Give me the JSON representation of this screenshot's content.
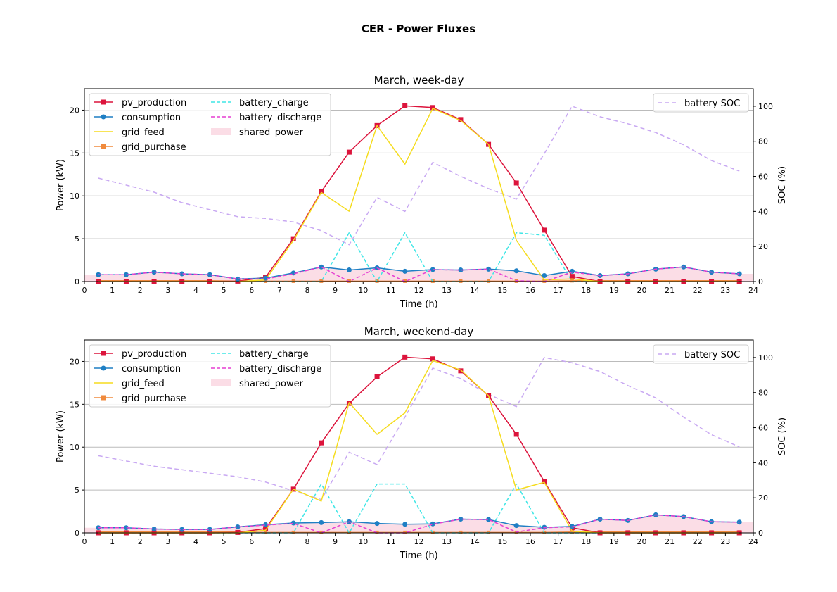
{
  "figure_title": "CER - Power Fluxes",
  "colors": {
    "pv_production": "#dc143c",
    "consumption": "#1f7fc4",
    "grid_feed": "#f5dc1e",
    "grid_purchase": "#f08a3c",
    "battery_charge": "#3fe6e6",
    "battery_discharge": "#e63fd2",
    "shared_power": "#fbdde6",
    "battery_soc": "#c8a8f2",
    "grid": "#bbbbbb"
  },
  "chart_data": [
    {
      "type": "line",
      "title": "March, week-day",
      "xlabel": "Time (h)",
      "ylabel": "Power (kW)",
      "y2label": "SOC (%)",
      "xlim": [
        0,
        24
      ],
      "ylim": [
        0,
        22.5
      ],
      "y2lim": [
        0,
        110
      ],
      "xticks": [
        "0",
        "1",
        "2",
        "3",
        "4",
        "5",
        "6",
        "7",
        "8",
        "9",
        "10",
        "11",
        "12",
        "13",
        "14",
        "15",
        "16",
        "17",
        "18",
        "19",
        "20",
        "21",
        "22",
        "23",
        "24"
      ],
      "yticks": [
        "0",
        "5",
        "10",
        "15",
        "20"
      ],
      "y2ticks": [
        "0",
        "20",
        "40",
        "60",
        "80",
        "100"
      ],
      "grid": "horizontal",
      "legend_left": "top-left",
      "legend_right": "top-right",
      "x": [
        0.5,
        1.5,
        2.5,
        3.5,
        4.5,
        5.5,
        6.5,
        7.5,
        8.5,
        9.5,
        10.5,
        11.5,
        12.5,
        13.5,
        14.5,
        15.5,
        16.5,
        17.5,
        18.5,
        19.5,
        20.5,
        21.5,
        22.5,
        23.5
      ],
      "series": [
        {
          "name": "pv_production",
          "values": [
            0,
            0,
            0,
            0,
            0,
            0.05,
            0.5,
            5.0,
            10.5,
            15.1,
            18.2,
            20.5,
            20.3,
            18.9,
            16.0,
            11.5,
            6.0,
            0.6,
            0,
            0,
            0,
            0,
            0,
            0
          ]
        },
        {
          "name": "consumption",
          "values": [
            0.8,
            0.8,
            1.1,
            0.9,
            0.8,
            0.3,
            0.4,
            1.0,
            1.7,
            1.35,
            1.6,
            1.2,
            1.4,
            1.35,
            1.45,
            1.25,
            0.7,
            1.2,
            0.7,
            0.9,
            1.45,
            1.7,
            1.1,
            0.9
          ]
        },
        {
          "name": "grid_feed",
          "values": [
            0,
            0,
            0,
            0,
            0,
            0,
            0.2,
            4.8,
            10.4,
            8.2,
            18.2,
            13.7,
            20.2,
            18.8,
            16.0,
            4.8,
            0.2,
            0.3,
            0,
            0,
            0,
            0,
            0,
            0
          ]
        },
        {
          "name": "grid_purchase",
          "values": [
            0.1,
            0.1,
            0.1,
            0.1,
            0.1,
            0.05,
            0.05,
            0.05,
            0.05,
            0.05,
            0.05,
            0.05,
            0.05,
            0.05,
            0.05,
            0.05,
            0.05,
            0.1,
            0.1,
            0.1,
            0.1,
            0.1,
            0.1,
            0.1
          ]
        },
        {
          "name": "battery_charge",
          "values": [
            0,
            0,
            0,
            0,
            0,
            0,
            0,
            0,
            0,
            5.7,
            0,
            5.7,
            0,
            0,
            0,
            5.7,
            5.4,
            0,
            0,
            0,
            0,
            0,
            0,
            0
          ]
        },
        {
          "name": "battery_discharge",
          "values": [
            0.8,
            0.8,
            1.1,
            0.9,
            0.8,
            0.3,
            0.3,
            0.9,
            1.7,
            0,
            1.6,
            0,
            1.4,
            1.35,
            1.45,
            0.1,
            0,
            1.1,
            0.7,
            0.9,
            1.45,
            1.7,
            1.1,
            0.9
          ]
        },
        {
          "name": "shared_power",
          "values": [
            0.8,
            0.8,
            1.1,
            0.9,
            0.8,
            0.3,
            0.4,
            1.0,
            1.7,
            1.35,
            1.6,
            1.2,
            1.4,
            1.35,
            1.45,
            1.25,
            0.7,
            1.2,
            0.7,
            0.9,
            1.45,
            1.7,
            1.1,
            0.9
          ]
        },
        {
          "name": "battery SOC",
          "axis": "right",
          "values": [
            59,
            55,
            51,
            45,
            41,
            37,
            36,
            34,
            29,
            21,
            48,
            40,
            68,
            60,
            53,
            47,
            73,
            100,
            94,
            90,
            85,
            78,
            69,
            63
          ]
        }
      ]
    },
    {
      "type": "line",
      "title": "March, weekend-day",
      "xlabel": "Time (h)",
      "ylabel": "Power (kW)",
      "y2label": "SOC (%)",
      "xlim": [
        0,
        24
      ],
      "ylim": [
        0,
        22.5
      ],
      "y2lim": [
        0,
        110
      ],
      "xticks": [
        "0",
        "1",
        "2",
        "3",
        "4",
        "5",
        "6",
        "7",
        "8",
        "9",
        "10",
        "11",
        "12",
        "13",
        "14",
        "15",
        "16",
        "17",
        "18",
        "19",
        "20",
        "21",
        "22",
        "23",
        "24"
      ],
      "yticks": [
        "0",
        "5",
        "10",
        "15",
        "20"
      ],
      "y2ticks": [
        "0",
        "20",
        "40",
        "60",
        "80",
        "100"
      ],
      "grid": "horizontal",
      "legend_left": "top-left",
      "legend_right": "top-right",
      "x": [
        0.5,
        1.5,
        2.5,
        3.5,
        4.5,
        5.5,
        6.5,
        7.5,
        8.5,
        9.5,
        10.5,
        11.5,
        12.5,
        13.5,
        14.5,
        15.5,
        16.5,
        17.5,
        18.5,
        19.5,
        20.5,
        21.5,
        22.5,
        23.5
      ],
      "series": [
        {
          "name": "pv_production",
          "values": [
            0,
            0,
            0,
            0,
            0,
            0.05,
            0.5,
            5.1,
            10.5,
            15.1,
            18.2,
            20.5,
            20.3,
            18.9,
            16.0,
            11.5,
            6.0,
            0.6,
            0,
            0,
            0,
            0,
            0,
            0
          ]
        },
        {
          "name": "consumption",
          "values": [
            0.6,
            0.6,
            0.45,
            0.4,
            0.4,
            0.7,
            0.95,
            1.15,
            1.2,
            1.3,
            1.1,
            1.0,
            1.05,
            1.6,
            1.55,
            0.85,
            0.65,
            0.75,
            1.6,
            1.45,
            2.1,
            1.9,
            1.3,
            1.25
          ]
        },
        {
          "name": "grid_feed",
          "values": [
            0,
            0,
            0,
            0,
            0,
            0,
            0.3,
            5.1,
            3.7,
            15.2,
            11.5,
            14.0,
            20.1,
            19.0,
            16.0,
            5.0,
            5.9,
            0.2,
            0,
            0,
            0,
            0,
            0,
            0
          ]
        },
        {
          "name": "grid_purchase",
          "values": [
            0.1,
            0.1,
            0.1,
            0.1,
            0.1,
            0.1,
            0.05,
            0.05,
            0.05,
            0.05,
            0.05,
            0.05,
            0.05,
            0.05,
            0.05,
            0.05,
            0.05,
            0.1,
            0.1,
            0.1,
            0.1,
            0.1,
            0.1,
            0.1
          ]
        },
        {
          "name": "battery_charge",
          "values": [
            0,
            0,
            0,
            0,
            0,
            0,
            0,
            0,
            5.7,
            0,
            5.7,
            5.7,
            0,
            0,
            0,
            5.7,
            0,
            0,
            0,
            0,
            0,
            0,
            0,
            0
          ]
        },
        {
          "name": "battery_discharge",
          "values": [
            0.6,
            0.6,
            0.45,
            0.4,
            0.4,
            0.7,
            0.9,
            1.1,
            0,
            1.3,
            0,
            0,
            1.0,
            1.6,
            1.55,
            0.1,
            0.6,
            0.7,
            1.6,
            1.45,
            2.1,
            1.9,
            1.3,
            1.25
          ]
        },
        {
          "name": "shared_power",
          "values": [
            0.6,
            0.6,
            0.45,
            0.4,
            0.4,
            0.7,
            0.95,
            1.15,
            1.2,
            1.3,
            1.1,
            1.0,
            1.05,
            1.6,
            1.55,
            0.85,
            0.65,
            0.75,
            1.6,
            1.45,
            2.1,
            1.9,
            1.3,
            1.25
          ]
        },
        {
          "name": "battery SOC",
          "axis": "right",
          "values": [
            44,
            41,
            38,
            36,
            34,
            32,
            29,
            24,
            19,
            46,
            39,
            66,
            94,
            88,
            79,
            72,
            100,
            97,
            92,
            84,
            77,
            66,
            56,
            49
          ]
        }
      ]
    }
  ]
}
